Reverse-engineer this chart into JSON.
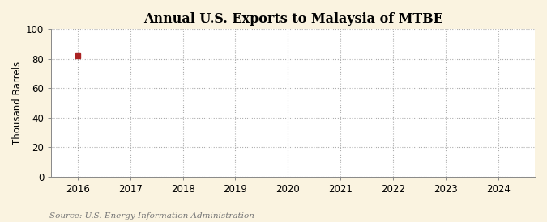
{
  "title": "Annual U.S. Exports to Malaysia of MTBE",
  "ylabel": "Thousand Barrels",
  "source_text": "Source: U.S. Energy Information Administration",
  "fig_background_color": "#faf3e0",
  "plot_background_color": "#ffffff",
  "data_x": [
    2016
  ],
  "data_y": [
    82
  ],
  "data_color": "#aa2222",
  "marker": "s",
  "marker_size": 4,
  "xlim": [
    2015.5,
    2024.7
  ],
  "ylim": [
    0,
    100
  ],
  "yticks": [
    0,
    20,
    40,
    60,
    80,
    100
  ],
  "xticks": [
    2016,
    2017,
    2018,
    2019,
    2020,
    2021,
    2022,
    2023,
    2024
  ],
  "title_fontsize": 11.5,
  "label_fontsize": 8.5,
  "tick_fontsize": 8.5,
  "source_fontsize": 7.5,
  "grid_color": "#999999",
  "grid_style": ":",
  "grid_alpha": 0.8,
  "grid_linewidth": 0.8
}
